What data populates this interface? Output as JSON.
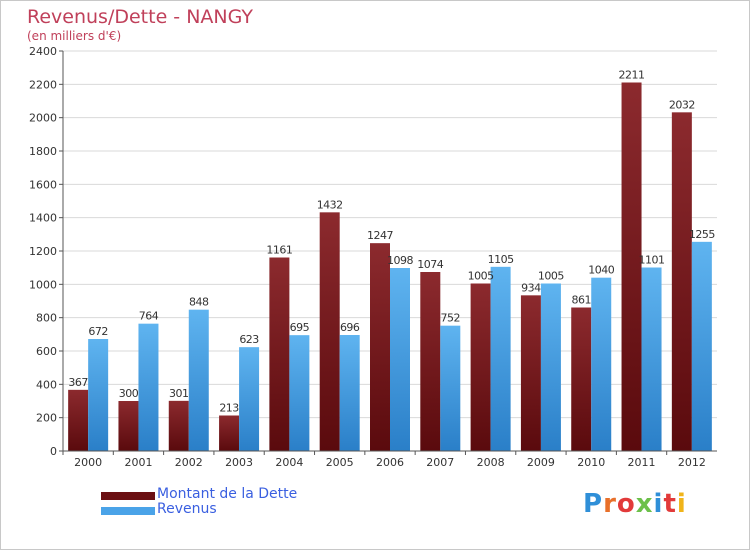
{
  "title": "Revenus/Dette - NANGY",
  "subtitle": "(en milliers d'€)",
  "legend": [
    {
      "label": "Montant de la Dette",
      "color": "#6b0f12"
    },
    {
      "label": "Revenus",
      "color": "#4aa3e8"
    }
  ],
  "logo": {
    "text": "Proxiti",
    "colors": [
      "#2f8fd8",
      "#e8702a",
      "#e23a3a",
      "#6cc04a",
      "#2f8fd8",
      "#e23a3a",
      "#f0b41a"
    ]
  },
  "colors": {
    "dette_top": "#8c2a2e",
    "dette_bottom": "#5a0a0d",
    "revenus_top": "#5fb4f0",
    "revenus_bottom": "#2a7fc8",
    "grid": "#d9d9d9",
    "axis": "#555555"
  },
  "chart_data": {
    "type": "bar",
    "title": "Revenus/Dette - NANGY",
    "subtitle": "(en milliers d'€)",
    "categories": [
      "2000",
      "2001",
      "2002",
      "2003",
      "2004",
      "2005",
      "2006",
      "2007",
      "2008",
      "2009",
      "2010",
      "2011",
      "2012"
    ],
    "series": [
      {
        "name": "Montant de la Dette",
        "values": [
          367,
          300,
          301,
          213,
          1161,
          1432,
          1247,
          1074,
          1005,
          934,
          861,
          2211,
          2032
        ],
        "labels": [
          "367",
          "300",
          "301",
          "213",
          "1161",
          "1432",
          "1247",
          "1074",
          "1005",
          "934",
          "861",
          "2211",
          "2032"
        ]
      },
      {
        "name": "Revenus",
        "values": [
          672,
          764,
          848,
          623,
          695,
          696,
          1098,
          752,
          1105,
          1005,
          1040,
          1101,
          1255
        ],
        "labels": [
          "672",
          "764",
          "848",
          "623",
          "695",
          "696",
          "1098",
          "752",
          "1105",
          "1005",
          "1040",
          "1101",
          "1255"
        ]
      }
    ],
    "ylim": [
      0,
      2400
    ],
    "yticks": [
      0,
      200,
      400,
      600,
      800,
      1000,
      1200,
      1400,
      1600,
      1800,
      2000,
      2200,
      2400
    ],
    "grid": true,
    "legend_position": "bottom-left"
  }
}
